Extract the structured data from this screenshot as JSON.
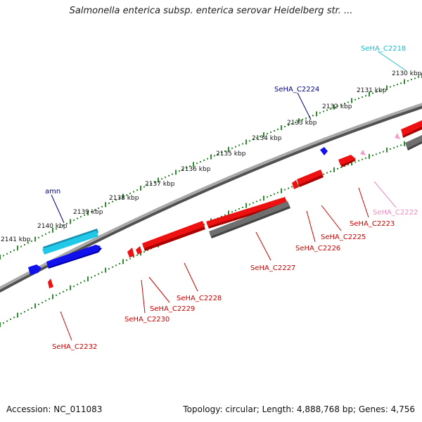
{
  "title": "Salmonella enterica subsp. enterica serovar Heidelberg str. ...",
  "footer": {
    "accession": "Accession: NC_011083",
    "summary": "Topology: circular; Length: 4,888,768 bp; Genes: 4,756"
  },
  "colors": {
    "backbone": "#8a8a8a",
    "tick": "#2e8b2e",
    "cds_red": "#ee1111",
    "cds_blue": "#1111ee",
    "cds_cyan": "#22c8e8",
    "gray": "#6f6f6f",
    "pink": "#f0a0c8",
    "label_red": "#cc0000",
    "label_navy": "#000088",
    "label_cyan": "#22bbcc",
    "label_pink": "#ee88bb"
  },
  "kbp_labels": [
    "2130 kbp",
    "2131 kbp",
    "2132 kbp",
    "2133 kbp",
    "2134 kbp",
    "2135 kbp",
    "2136 kbp",
    "2137 kbp",
    "2138 kbp",
    "2139 kbp",
    "2140 kbp",
    "2141 kbp"
  ],
  "gene_labels": [
    "SeHA_C2218",
    "SeHA_C2224",
    "amn",
    "SeHA_C2222",
    "SeHA_C2223",
    "SeHA_C2225",
    "SeHA_C2226",
    "SeHA_C2227",
    "SeHA_C2228",
    "SeHA_C2229",
    "SeHA_C2230",
    "SeHA_C2232"
  ]
}
